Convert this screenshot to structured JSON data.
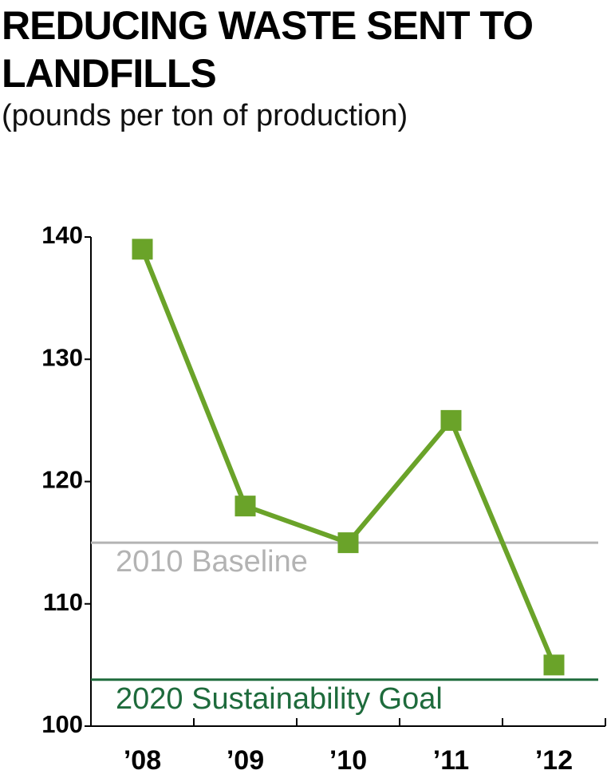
{
  "chart_data": {
    "type": "line",
    "title": "REDUCING WASTE SENT TO LANDFILLS",
    "subtitle": "(pounds per ton of production)",
    "categories": [
      "’08",
      "’09",
      "’10",
      "’11",
      "’12"
    ],
    "values": [
      139,
      118,
      115,
      125,
      105
    ],
    "color": "#6aa329",
    "ylim": [
      100,
      140
    ],
    "yticks": [
      100,
      110,
      120,
      130,
      140
    ],
    "reference_lines": [
      {
        "label": "2010 Baseline",
        "value": 115,
        "color": "#b3b3b3"
      },
      {
        "label": "2020 Sustainability Goal",
        "value": 103.8,
        "color": "#1e6b3c"
      }
    ]
  }
}
